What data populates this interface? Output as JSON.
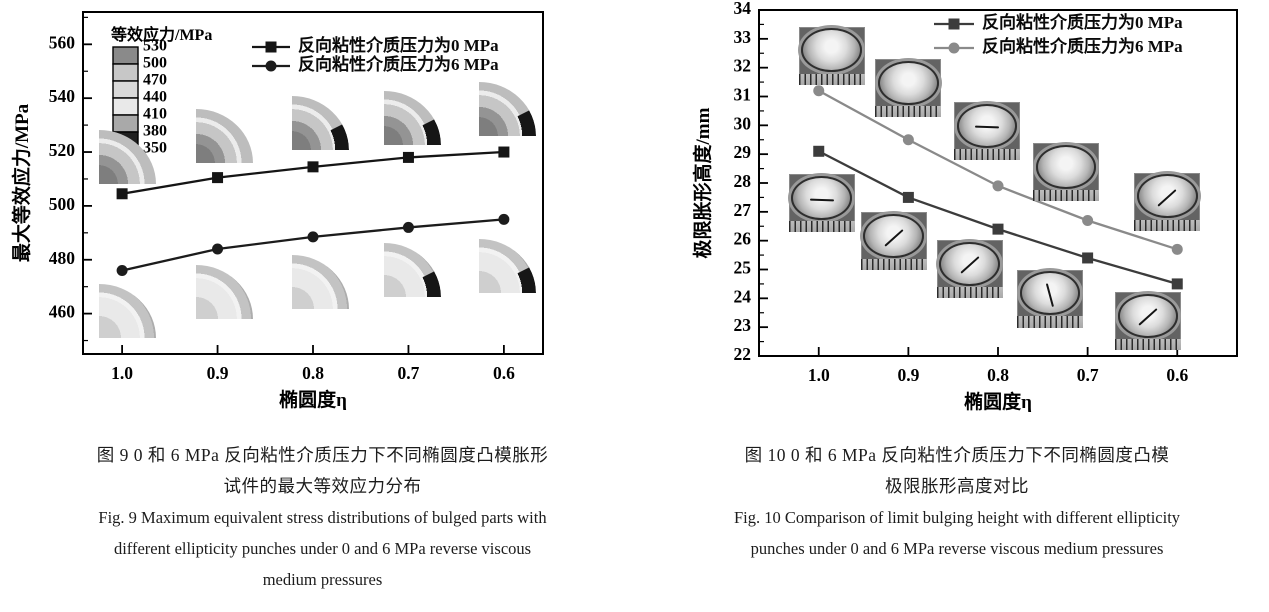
{
  "figures": [
    {
      "caption_cn": [
        "图 9  0 和 6 MPa 反向粘性介质压力下不同椭圆度凸模胀形",
        "试件的最大等效应力分布"
      ],
      "caption_en": [
        "Fig. 9  Maximum equivalent stress distributions of bulged parts with",
        "different ellipticity punches under 0 and 6 MPa reverse viscous",
        "medium pressures"
      ]
    },
    {
      "caption_cn": [
        "图 10  0 和 6 MPa 反向粘性介质压力下不同椭圆度凸模",
        "极限胀形高度对比"
      ],
      "caption_en": [
        "Fig. 10  Comparison of limit bulging height with different ellipticity",
        "punches under 0 and 6 MPa reverse viscous medium pressures"
      ]
    }
  ],
  "chart_data": [
    {
      "type": "line",
      "name": "fig9",
      "title": "",
      "xlabel": "椭圆度η",
      "ylabel": "最大等效应力/MPa",
      "categories": [
        1.0,
        0.9,
        0.8,
        0.7,
        0.6
      ],
      "x_tick_labels": [
        "1.0",
        "0.9",
        "0.8",
        "0.7",
        "0.6"
      ],
      "ylim": [
        445,
        572
      ],
      "y_major_ticks": [
        460,
        480,
        500,
        520,
        540,
        560
      ],
      "y_minor_step": 10,
      "grid": false,
      "legend_position": "top-right-inside",
      "series": [
        {
          "name": "反向粘性介质压力为0 MPa",
          "marker": "square",
          "color": "#151515",
          "values": [
            504.5,
            510.5,
            514.5,
            518,
            520
          ]
        },
        {
          "name": "反向粘性介质压力为6 MPa",
          "marker": "circle",
          "color": "#1c1c1c",
          "values": [
            476,
            484,
            488.5,
            492,
            495
          ]
        }
      ],
      "colorbar": {
        "title": "等效应力/MPa",
        "boundary_labels": [
          "530",
          "500",
          "470",
          "440",
          "410",
          "380",
          "350"
        ],
        "swatch_colors": [
          "#8a8a8a",
          "#c7c7c7",
          "#d9d9d9",
          "#e9e9e9",
          "#a9a9a9",
          "#1f1f1f"
        ]
      },
      "insets": [
        {
          "fx": 0.035,
          "fy": 0.345,
          "style": "a",
          "dark": false
        },
        {
          "fx": 0.245,
          "fy": 0.285,
          "style": "a",
          "dark": false
        },
        {
          "fx": 0.455,
          "fy": 0.245,
          "style": "a",
          "dark": true
        },
        {
          "fx": 0.655,
          "fy": 0.23,
          "style": "a",
          "dark": true
        },
        {
          "fx": 0.86,
          "fy": 0.205,
          "style": "a",
          "dark": true
        },
        {
          "fx": 0.035,
          "fy": 0.795,
          "style": "b",
          "dark": false
        },
        {
          "fx": 0.245,
          "fy": 0.74,
          "style": "b",
          "dark": false
        },
        {
          "fx": 0.455,
          "fy": 0.71,
          "style": "b",
          "dark": false
        },
        {
          "fx": 0.655,
          "fy": 0.675,
          "style": "b",
          "dark": true
        },
        {
          "fx": 0.86,
          "fy": 0.665,
          "style": "b",
          "dark": true
        }
      ]
    },
    {
      "type": "line",
      "name": "fig10",
      "title": "",
      "xlabel": "椭圆度η",
      "ylabel": "极限胀形高度/mm",
      "categories": [
        1.0,
        0.9,
        0.8,
        0.7,
        0.6
      ],
      "x_tick_labels": [
        "1.0",
        "0.9",
        "0.8",
        "0.7",
        "0.6"
      ],
      "ylim": [
        22,
        34
      ],
      "y_major_ticks": [
        22,
        23,
        24,
        25,
        26,
        27,
        28,
        29,
        30,
        31,
        32,
        33,
        34
      ],
      "y_minor_step": 0.5,
      "grid": false,
      "legend_position": "top-right-inside",
      "series": [
        {
          "name": "反向粘性介质压力为0 MPa",
          "marker": "square",
          "color": "#3c3c3c",
          "values": [
            29.1,
            27.5,
            26.4,
            25.4,
            24.5
          ]
        },
        {
          "name": "反向粘性介质压力为6 MPa",
          "marker": "circle",
          "color": "#8a8a8a",
          "values": [
            31.2,
            29.5,
            27.9,
            26.7,
            25.7
          ]
        }
      ],
      "insets": [
        {
          "fx": 0.083,
          "fy": 0.048,
          "style": "photo",
          "crack": "none"
        },
        {
          "fx": 0.243,
          "fy": 0.142,
          "style": "photo",
          "crack": "none"
        },
        {
          "fx": 0.408,
          "fy": 0.266,
          "style": "photo",
          "crack": "h"
        },
        {
          "fx": 0.573,
          "fy": 0.385,
          "style": "photo",
          "crack": "none"
        },
        {
          "fx": 0.785,
          "fy": 0.47,
          "style": "photo",
          "crack": "d"
        },
        {
          "fx": 0.062,
          "fy": 0.475,
          "style": "photo",
          "crack": "h"
        },
        {
          "fx": 0.213,
          "fy": 0.585,
          "style": "photo",
          "crack": "d"
        },
        {
          "fx": 0.372,
          "fy": 0.665,
          "style": "photo",
          "crack": "d"
        },
        {
          "fx": 0.54,
          "fy": 0.75,
          "style": "photo",
          "crack": "v"
        },
        {
          "fx": 0.745,
          "fy": 0.815,
          "style": "photo",
          "crack": "d"
        }
      ]
    }
  ]
}
